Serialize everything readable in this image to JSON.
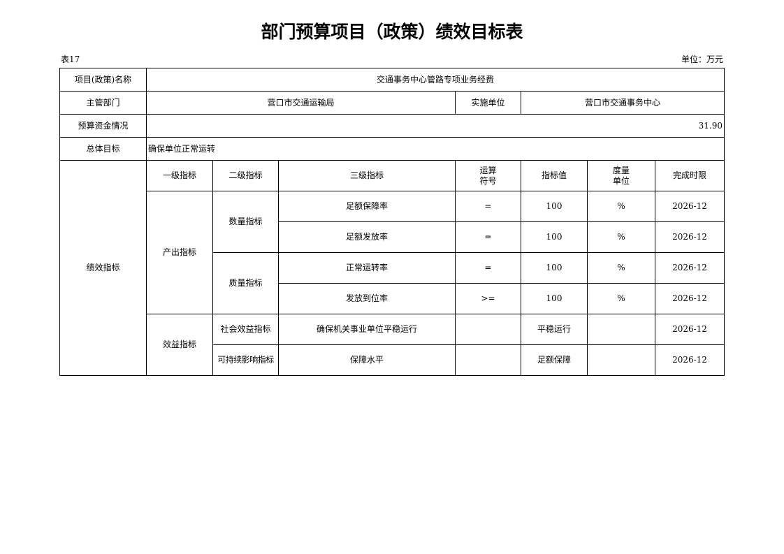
{
  "title": "部门预算项目（政策）绩效目标表",
  "table_no": "表17",
  "unit": "单位：万元",
  "project_name_label": "项目(政策)名称",
  "project_name": "交通事务中心管路专项业务经费",
  "dept_label": "主管部门",
  "dept": "营口市交通运输局",
  "impl_label": "实施单位",
  "impl": "营口市交通事务中心",
  "budget_label": "预算资金情况",
  "budget": "31.90",
  "goal_label": "总体目标",
  "goal": "确保单位正常运转",
  "perf_label": "绩效指标",
  "headers": {
    "l1": "一级指标",
    "l2": "二级指标",
    "l3": "三级指标",
    "op": "运算符号",
    "val": "指标值",
    "unit": "度量单位",
    "deadline": "完成时限"
  },
  "groups": {
    "output": "产出指标",
    "quantity": "数量指标",
    "quality": "质量指标",
    "benefit": "效益指标",
    "social": "社会效益指标",
    "sustain": "可持续影响指标"
  },
  "rows": [
    {
      "name": "足额保障率",
      "op": "=",
      "val": "100",
      "unit": "%",
      "deadline": "2026-12"
    },
    {
      "name": "足额发放率",
      "op": "=",
      "val": "100",
      "unit": "%",
      "deadline": "2026-12"
    },
    {
      "name": "正常运转率",
      "op": "=",
      "val": "100",
      "unit": "%",
      "deadline": "2026-12"
    },
    {
      "name": "发放到位率",
      "op": ">=",
      "val": "100",
      "unit": "%",
      "deadline": "2026-12"
    },
    {
      "name": "确保机关事业单位平稳运行",
      "op": "",
      "val": "平稳运行",
      "unit": "",
      "deadline": "2026-12"
    },
    {
      "name": "保障水平",
      "op": "",
      "val": "足额保障",
      "unit": "",
      "deadline": "2026-12"
    }
  ]
}
